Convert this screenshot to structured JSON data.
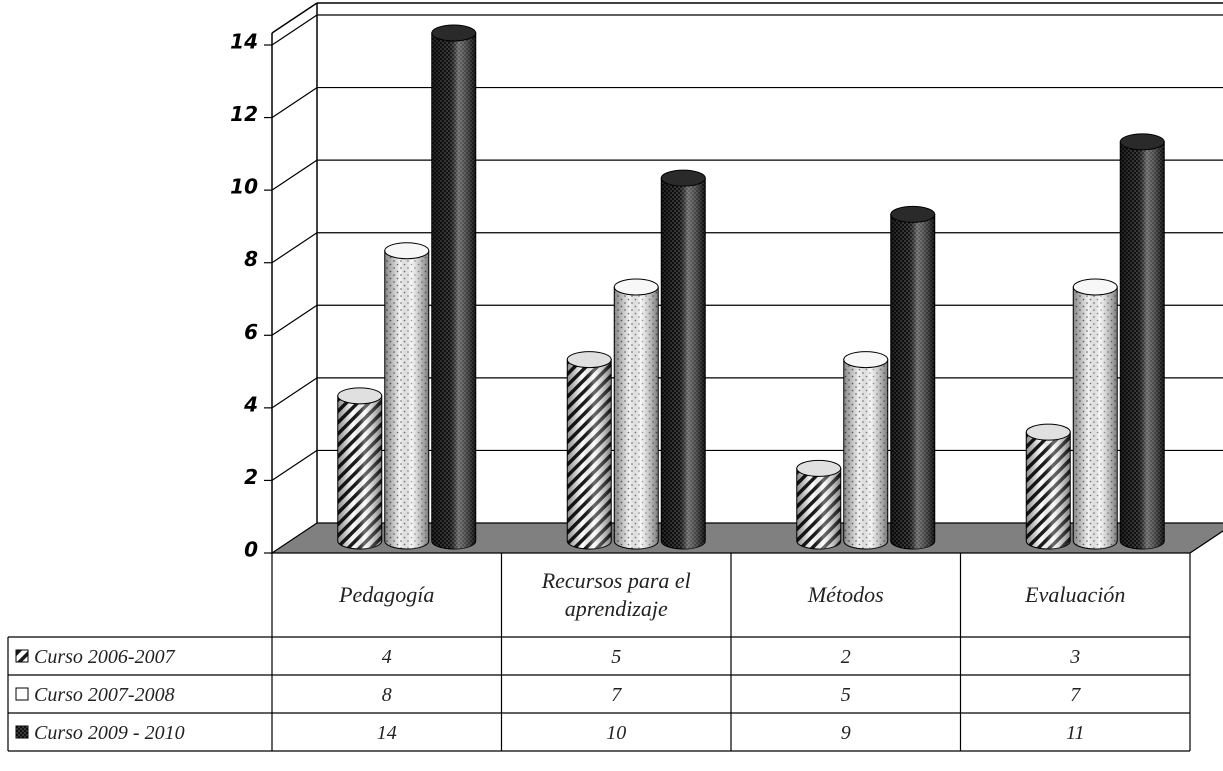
{
  "chart_data": {
    "type": "bar",
    "style": "3d-cylinder",
    "categories": [
      "Pedagogía",
      "Recursos para el aprendizaje",
      "Métodos",
      "Evaluación"
    ],
    "series": [
      {
        "name": "Curso 2006-2007",
        "values": [
          4,
          5,
          2,
          3
        ],
        "pattern": "diagonal-hatch"
      },
      {
        "name": "Curso 2007-2008",
        "values": [
          8,
          7,
          5,
          7
        ],
        "pattern": "light-dots"
      },
      {
        "name": "Curso 2009 - 2010",
        "values": [
          14,
          10,
          9,
          11
        ],
        "pattern": "dark-dots"
      }
    ],
    "ylim": [
      0,
      14
    ],
    "yticks": [
      "0",
      "2",
      "4",
      "6",
      "8",
      "10",
      "12",
      "14"
    ],
    "grid": true,
    "legend": "data-table",
    "title": "",
    "xlabel": "",
    "ylabel": ""
  }
}
